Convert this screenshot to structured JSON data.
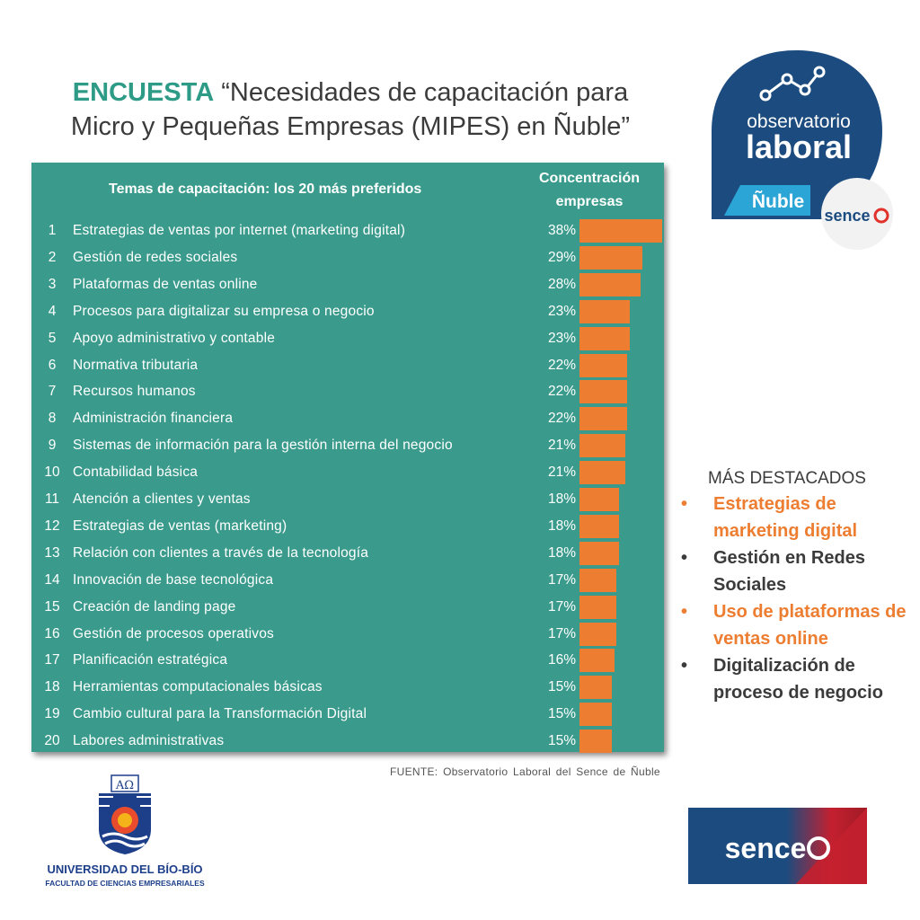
{
  "title": {
    "keyword": "ENCUESTA",
    "line1": "“Necesidades de capacitación para",
    "line2": "Micro y Pequeñas Empresas (MIPES) en Ñuble”"
  },
  "chart_data": {
    "type": "table",
    "header_topics": "Temas de capacitación: los 20 más preferidos",
    "header_value_line1": "Concentración",
    "header_value_line2": "empresas",
    "rows": [
      {
        "rank": "1",
        "topic": "Estrategias de ventas por internet (marketing digital)",
        "value": 38,
        "label": "38%"
      },
      {
        "rank": "2",
        "topic": "Gestión de redes sociales",
        "value": 29,
        "label": "29%"
      },
      {
        "rank": "3",
        "topic": "Plataformas de ventas online",
        "value": 28,
        "label": "28%"
      },
      {
        "rank": "4",
        "topic": "Procesos para digitalizar su empresa o negocio",
        "value": 23,
        "label": "23%"
      },
      {
        "rank": "5",
        "topic": "Apoyo administrativo y contable",
        "value": 23,
        "label": "23%"
      },
      {
        "rank": "6",
        "topic": "Normativa tributaria",
        "value": 22,
        "label": "22%"
      },
      {
        "rank": "7",
        "topic": "Recursos humanos",
        "value": 22,
        "label": "22%"
      },
      {
        "rank": "8",
        "topic": "Administración financiera",
        "value": 22,
        "label": "22%"
      },
      {
        "rank": "9",
        "topic": "Sistemas de información para la gestión interna del negocio",
        "value": 21,
        "label": "21%"
      },
      {
        "rank": "10",
        "topic": "Contabilidad básica",
        "value": 21,
        "label": "21%"
      },
      {
        "rank": "11",
        "topic": "Atención a clientes y ventas",
        "value": 18,
        "label": "18%"
      },
      {
        "rank": "12",
        "topic": "Estrategias de ventas (marketing)",
        "value": 18,
        "label": "18%"
      },
      {
        "rank": "13",
        "topic": "Relación con clientes a través de la tecnología",
        "value": 18,
        "label": "18%"
      },
      {
        "rank": "14",
        "topic": "Innovación de base tecnológica",
        "value": 17,
        "label": "17%"
      },
      {
        "rank": "15",
        "topic": "Creación de landing page",
        "value": 17,
        "label": "17%"
      },
      {
        "rank": "16",
        "topic": "Gestión de procesos operativos",
        "value": 17,
        "label": "17%"
      },
      {
        "rank": "17",
        "topic": "Planificación estratégica",
        "value": 16,
        "label": "16%"
      },
      {
        "rank": "18",
        "topic": "Herramientas computacionales básicas",
        "value": 15,
        "label": "15%"
      },
      {
        "rank": "19",
        "topic": "Cambio cultural para la Transformación Digital",
        "value": 15,
        "label": "15%"
      },
      {
        "rank": "20",
        "topic": "Labores administrativas",
        "value": 15,
        "label": "15%"
      }
    ],
    "bar_color": "#ed7d31",
    "table_color": "#3a9b8c"
  },
  "source": "FUENTE: Observatorio Laboral del Sence de Ñuble",
  "highlights": {
    "title": "MÁS DESTACADOS",
    "items": [
      {
        "text": "Estrategias de marketing digital",
        "color": "orange"
      },
      {
        "text": "Gestión en Redes Sociales",
        "color": "gray"
      },
      {
        "text": "Uso de plataformas de ventas online",
        "color": "orange"
      },
      {
        "text": "Digitalización de proceso de negocio",
        "color": "gray"
      }
    ]
  },
  "logos": {
    "observatorio_line1": "observatorio",
    "observatorio_line2": "laboral",
    "observatorio_region": "Ñuble",
    "sence_small": "sence",
    "university_name": "UNIVERSIDAD DEL BÍO-BÍO",
    "university_faculty": "FACULTAD DE CIENCIAS EMPRESARIALES",
    "university_crest_letters": "AΩ",
    "sence_large": "sence"
  }
}
